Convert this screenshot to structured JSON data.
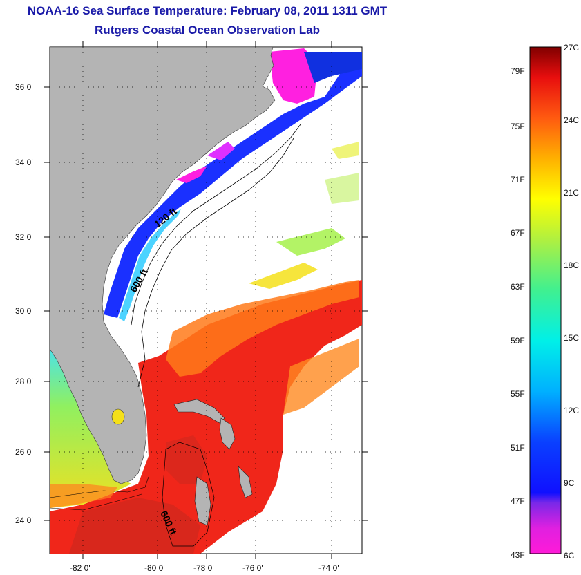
{
  "title": {
    "line1": "NOAA-16 Sea Surface Temperature:  February 08, 2011 1311 GMT",
    "line2": "Rutgers Coastal Ocean Observation Lab"
  },
  "map": {
    "y_ticks": [
      "36 0'",
      "34 0'",
      "32 0'",
      "30 0'",
      "28 0'",
      "26 0'",
      "24 0'"
    ],
    "x_ticks": [
      "-82 0'",
      "-80 0'",
      "-78 0'",
      "-76 0'",
      "-74 0'"
    ],
    "contour_labels": [
      "120 ft",
      "600 ft",
      "600 ft"
    ]
  },
  "colorbar": {
    "fahrenheit": [
      "79F",
      "75F",
      "71F",
      "67F",
      "63F",
      "59F",
      "55F",
      "51F",
      "47F",
      "43F"
    ],
    "celsius": [
      "27C",
      "24C",
      "21C",
      "18C",
      "15C",
      "12C",
      "9C",
      "6C"
    ]
  },
  "colors": {
    "land": "#b4b4b4",
    "title": "#1a1aa8",
    "warm": "#f0261a",
    "cold": "#ff20e0"
  }
}
